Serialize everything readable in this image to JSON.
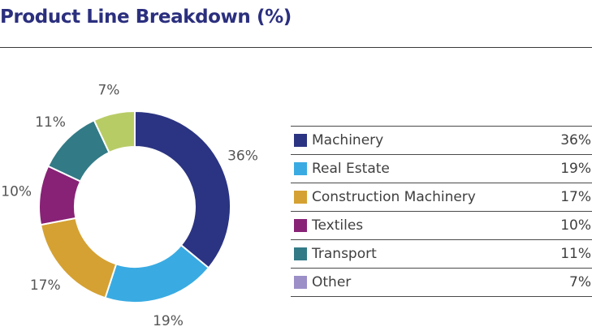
{
  "title": "Product Line Breakdown (%)",
  "chart_data": {
    "type": "pie",
    "title": "Product Line Breakdown (%)",
    "style": "donut",
    "categories": [
      "Machinery",
      "Real Estate",
      "Construction Machinery",
      "Textiles",
      "Transport",
      "Other"
    ],
    "values": [
      36,
      19,
      17,
      10,
      11,
      7
    ],
    "value_labels": [
      "36%",
      "19%",
      "17%",
      "10%",
      "11%",
      "7%"
    ],
    "colors": [
      "#2b3482",
      "#39abe2",
      "#d5a132",
      "#882276",
      "#327a86",
      "#b8cc66"
    ],
    "legend": {
      "position": "right",
      "items": [
        {
          "label": "Machinery",
          "value": "36%",
          "color": "#2b3482"
        },
        {
          "label": "Real Estate",
          "value": "19%",
          "color": "#39abe2"
        },
        {
          "label": "Construction Machinery",
          "value": "17%",
          "color": "#d5a132"
        },
        {
          "label": "Textiles",
          "value": "10%",
          "color": "#882276"
        },
        {
          "label": "Transport",
          "value": "11%",
          "color": "#327a86"
        },
        {
          "label": "Other",
          "value": "7%",
          "color": "#9c8fc8"
        }
      ]
    }
  }
}
